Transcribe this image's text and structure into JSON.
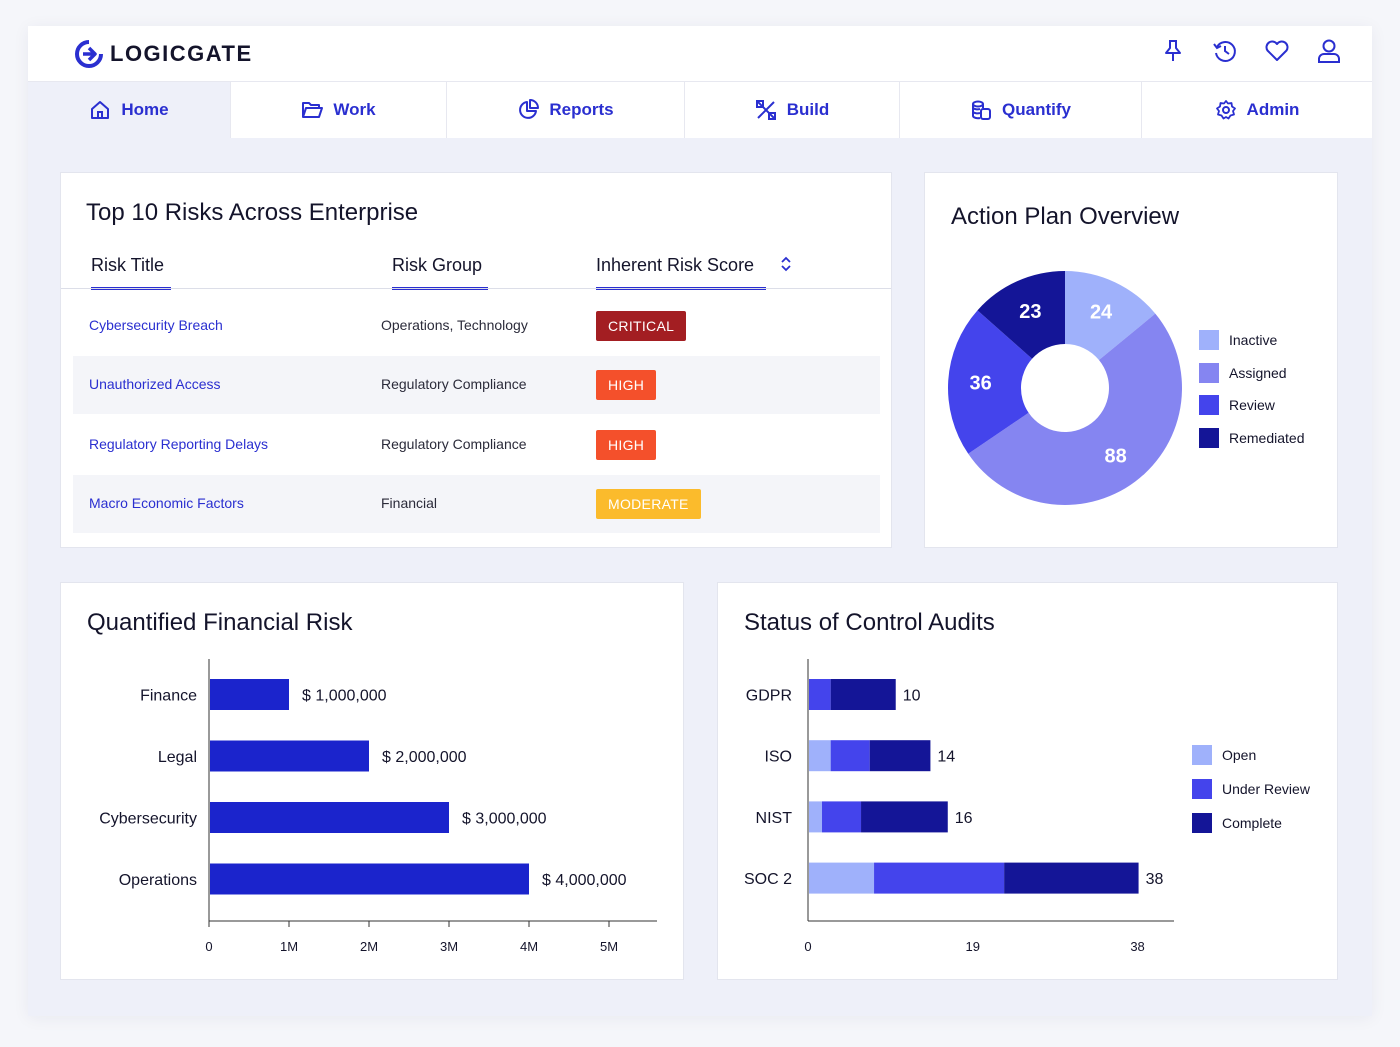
{
  "app": {
    "name": "LOGICGATE"
  },
  "nav": {
    "home": "Home",
    "work": "Work",
    "reports": "Reports",
    "build": "Build",
    "quantify": "Quantify",
    "admin": "Admin"
  },
  "colors": {
    "accent": "#2a2fd0",
    "critical": "#a31e22",
    "high": "#f4502b",
    "moderate": "#fbbb2c",
    "inactive": "#9fb1fb",
    "assigned": "#8585f1",
    "review": "#4444ec",
    "remediated": "#141597"
  },
  "top_risks": {
    "title": "Top 10 Risks Across Enterprise",
    "columns": {
      "title": "Risk Title",
      "group": "Risk Group",
      "score": "Inherent Risk Score"
    },
    "rows": [
      {
        "title": "Cybersecurity Breach",
        "group": "Operations, Technology",
        "score": "CRITICAL"
      },
      {
        "title": "Unauthorized Access",
        "group": "Regulatory Compliance",
        "score": "HIGH"
      },
      {
        "title": "Regulatory Reporting Delays",
        "group": "Regulatory Compliance",
        "score": "HIGH"
      },
      {
        "title": "Macro Economic Factors",
        "group": "Financial",
        "score": "MODERATE"
      }
    ]
  },
  "action_plan": {
    "title": "Action Plan Overview",
    "legend": [
      "Inactive",
      "Assigned",
      "Review",
      "Remediated"
    ]
  },
  "financial": {
    "title": "Quantified Financial Risk"
  },
  "audits": {
    "title": "Status of Control Audits",
    "legend": [
      "Open",
      "Under Review",
      "Complete"
    ]
  },
  "chart_data": [
    {
      "type": "pie",
      "title": "Action Plan Overview",
      "categories": [
        "Inactive",
        "Assigned",
        "Review",
        "Remediated"
      ],
      "values": [
        24,
        88,
        36,
        23
      ]
    },
    {
      "type": "bar",
      "orientation": "horizontal",
      "title": "Quantified Financial Risk",
      "categories": [
        "Finance",
        "Legal",
        "Cybersecurity",
        "Operations"
      ],
      "values": [
        1000000,
        2000000,
        3000000,
        4000000
      ],
      "value_labels": [
        "$ 1,000,000",
        "$ 2,000,000",
        "$ 3,000,000",
        "$ 4,000,000"
      ],
      "xticks": [
        "0",
        "1M",
        "2M",
        "3M",
        "4M",
        "5M"
      ],
      "xlim": [
        0,
        5600000
      ]
    },
    {
      "type": "bar",
      "orientation": "horizontal",
      "stacked": true,
      "title": "Status of Control Audits",
      "categories": [
        "GDPR",
        "ISO",
        "NIST",
        "SOC 2"
      ],
      "series": [
        {
          "name": "Open",
          "values": [
            0,
            2.5,
            1.5,
            7.5
          ]
        },
        {
          "name": "Under Review",
          "values": [
            2.5,
            4.5,
            4.5,
            15
          ]
        },
        {
          "name": "Complete",
          "values": [
            7.5,
            7,
            10,
            15.5
          ]
        }
      ],
      "totals": [
        "10",
        "14",
        "16",
        "38"
      ],
      "xticks": [
        "0",
        "19",
        "38"
      ],
      "xlim": [
        0,
        42.2
      ]
    }
  ]
}
